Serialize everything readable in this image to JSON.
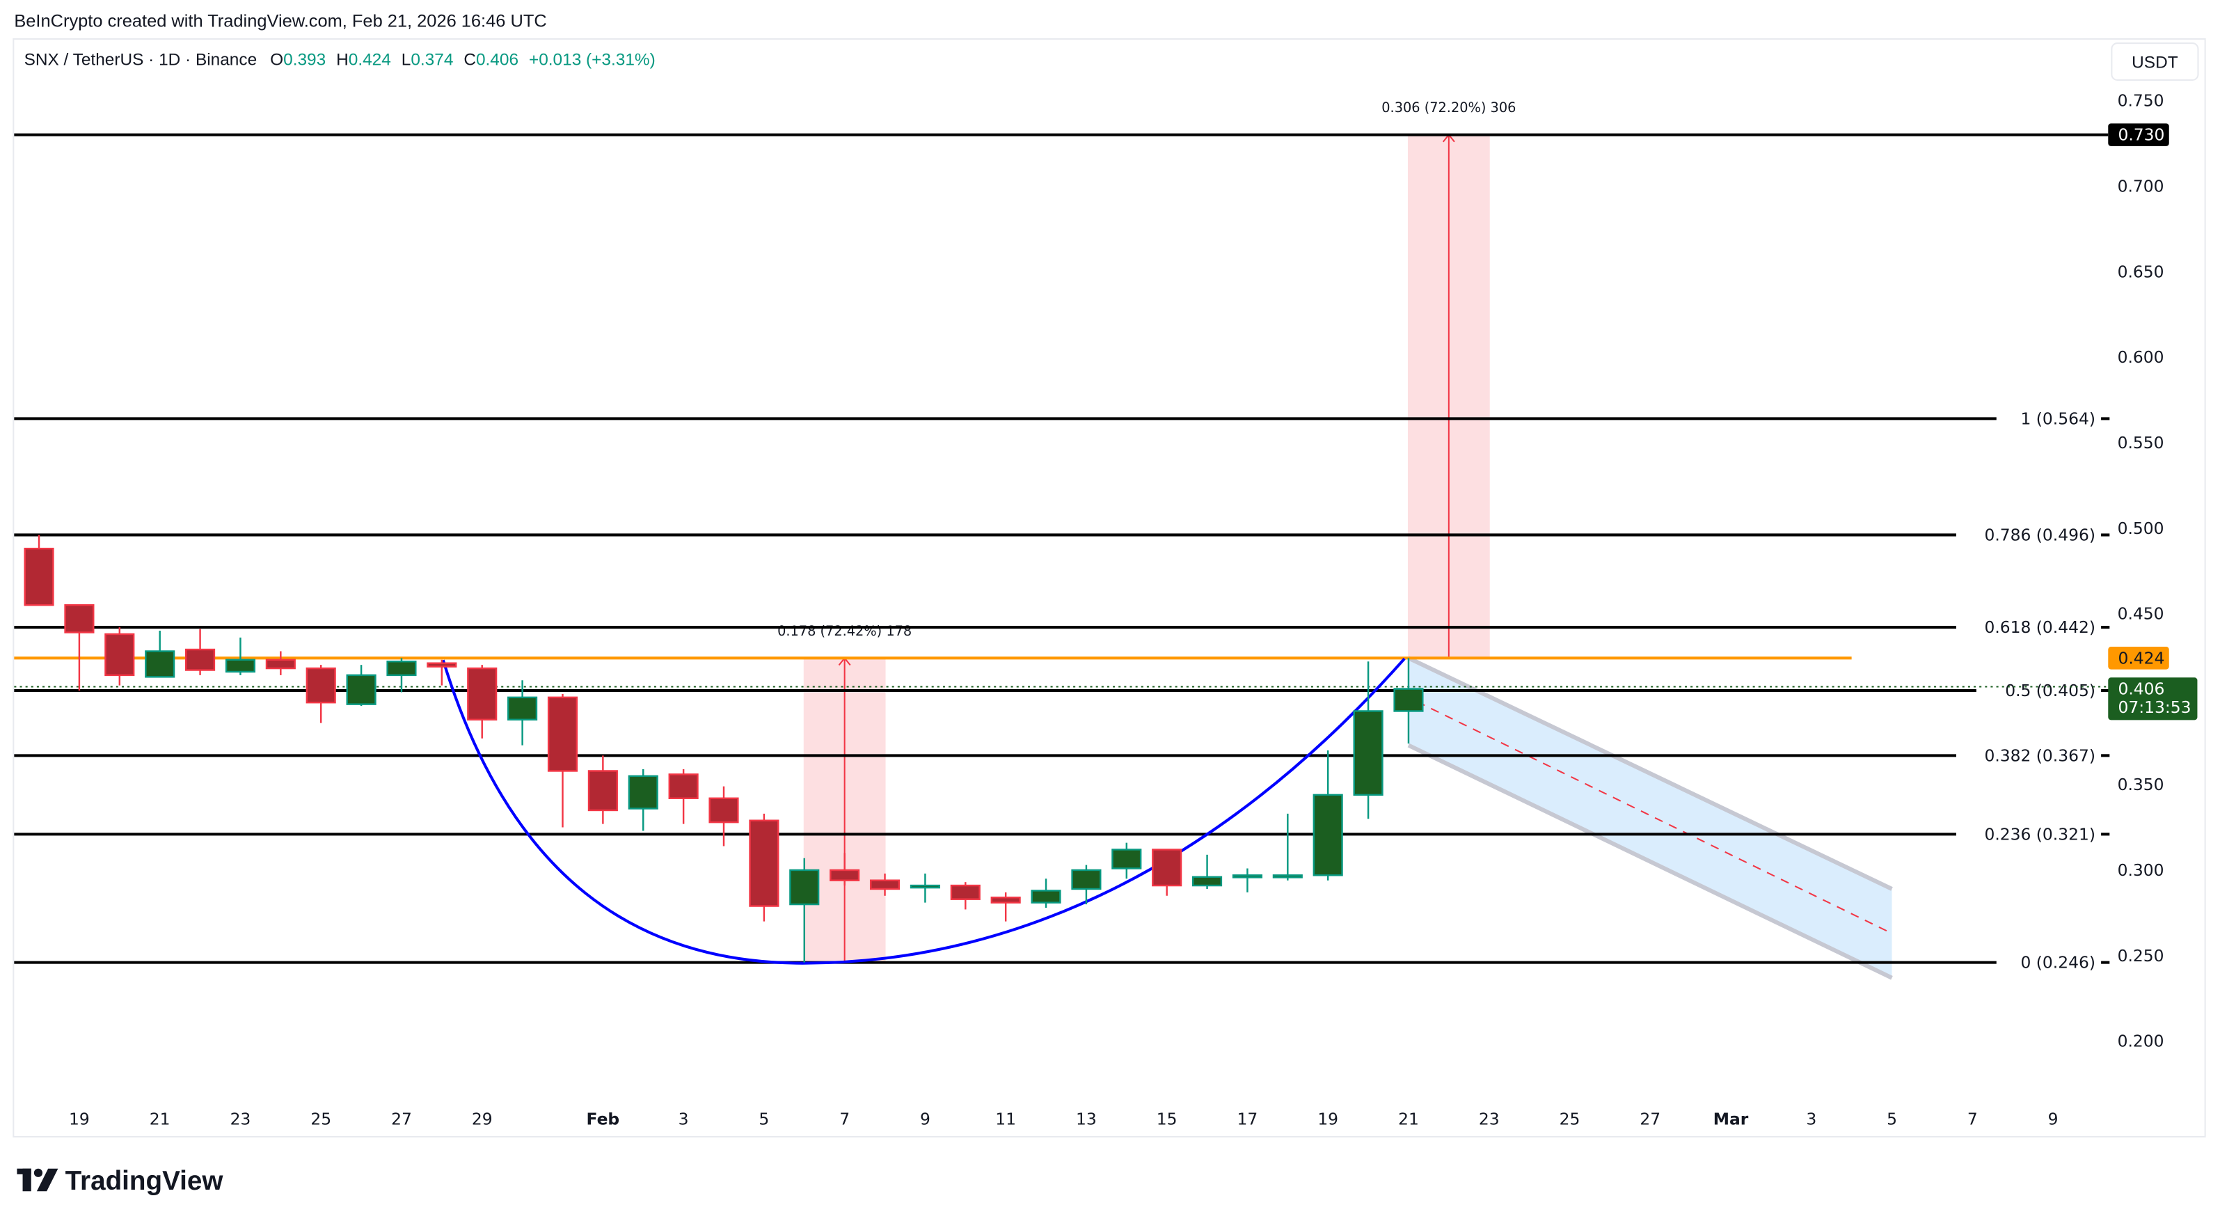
{
  "header": {
    "attribution": "BeInCrypto created with TradingView.com, Feb 21, 2026 16:46 UTC",
    "symbol": "SNX / TetherUS · 1D · Binance",
    "open_label": "O",
    "open": "0.393",
    "high_label": "H",
    "high": "0.424",
    "low_label": "L",
    "low": "0.374",
    "close_label": "C",
    "close": "0.406",
    "change": "+0.013 (+3.31%)"
  },
  "currency_button": "USDT",
  "logo_text": "TradingView",
  "colors": {
    "up_body": "#1b5e20",
    "up_border": "#089981",
    "down_body": "#b22833",
    "down_border": "#f23645",
    "horizontal_line": "#ff9800",
    "curve": "#0000ff",
    "measure_fill": "#f23645",
    "channel_fill": "#2196f3",
    "text_positive": "#089981"
  },
  "chart_data": {
    "type": "candlestick",
    "title": "SNX / TetherUS · 1D · Binance",
    "ylim": [
      0.17,
      0.78
    ],
    "price_ticks": [
      "0.750",
      "0.700",
      "0.650",
      "0.600",
      "0.550",
      "0.500",
      "0.450",
      "0.350",
      "0.300",
      "0.250",
      "0.200"
    ],
    "date_ticks": [
      {
        "label": "19",
        "date": "2026-01-19"
      },
      {
        "label": "21",
        "date": "2026-01-21"
      },
      {
        "label": "23",
        "date": "2026-01-23"
      },
      {
        "label": "25",
        "date": "2026-01-25"
      },
      {
        "label": "27",
        "date": "2026-01-27"
      },
      {
        "label": "29",
        "date": "2026-01-29"
      },
      {
        "label": "Feb",
        "date": "2026-02-01",
        "bold": true
      },
      {
        "label": "3",
        "date": "2026-02-03"
      },
      {
        "label": "5",
        "date": "2026-02-05"
      },
      {
        "label": "7",
        "date": "2026-02-07"
      },
      {
        "label": "9",
        "date": "2026-02-09"
      },
      {
        "label": "11",
        "date": "2026-02-11"
      },
      {
        "label": "13",
        "date": "2026-02-13"
      },
      {
        "label": "15",
        "date": "2026-02-15"
      },
      {
        "label": "17",
        "date": "2026-02-17"
      },
      {
        "label": "19",
        "date": "2026-02-19"
      },
      {
        "label": "21",
        "date": "2026-02-21"
      },
      {
        "label": "23",
        "date": "2026-02-23"
      },
      {
        "label": "25",
        "date": "2026-02-25"
      },
      {
        "label": "27",
        "date": "2026-02-27"
      },
      {
        "label": "Mar",
        "date": "2026-03-01",
        "bold": true
      },
      {
        "label": "3",
        "date": "2026-03-03"
      },
      {
        "label": "5",
        "date": "2026-03-05"
      },
      {
        "label": "7",
        "date": "2026-03-07"
      },
      {
        "label": "9",
        "date": "2026-03-09"
      }
    ],
    "candles": [
      {
        "date": "2026-01-18",
        "o": 0.488,
        "h": 0.496,
        "l": 0.455,
        "c": 0.455
      },
      {
        "date": "2026-01-19",
        "o": 0.455,
        "h": 0.455,
        "l": 0.405,
        "c": 0.439
      },
      {
        "date": "2026-01-20",
        "o": 0.438,
        "h": 0.442,
        "l": 0.408,
        "c": 0.414
      },
      {
        "date": "2026-01-21",
        "o": 0.413,
        "h": 0.44,
        "l": 0.413,
        "c": 0.428
      },
      {
        "date": "2026-01-22",
        "o": 0.429,
        "h": 0.441,
        "l": 0.414,
        "c": 0.417
      },
      {
        "date": "2026-01-23",
        "o": 0.416,
        "h": 0.436,
        "l": 0.414,
        "c": 0.423
      },
      {
        "date": "2026-01-24",
        "o": 0.423,
        "h": 0.428,
        "l": 0.414,
        "c": 0.418
      },
      {
        "date": "2026-01-25",
        "o": 0.418,
        "h": 0.42,
        "l": 0.386,
        "c": 0.398
      },
      {
        "date": "2026-01-26",
        "o": 0.397,
        "h": 0.42,
        "l": 0.396,
        "c": 0.414
      },
      {
        "date": "2026-01-27",
        "o": 0.414,
        "h": 0.424,
        "l": 0.404,
        "c": 0.422
      },
      {
        "date": "2026-01-28",
        "o": 0.421,
        "h": 0.423,
        "l": 0.408,
        "c": 0.419
      },
      {
        "date": "2026-01-29",
        "o": 0.418,
        "h": 0.42,
        "l": 0.377,
        "c": 0.388
      },
      {
        "date": "2026-01-30",
        "o": 0.388,
        "h": 0.411,
        "l": 0.373,
        "c": 0.401
      },
      {
        "date": "2026-01-31",
        "o": 0.401,
        "h": 0.403,
        "l": 0.325,
        "c": 0.358
      },
      {
        "date": "2026-02-01",
        "o": 0.358,
        "h": 0.367,
        "l": 0.327,
        "c": 0.335
      },
      {
        "date": "2026-02-02",
        "o": 0.336,
        "h": 0.359,
        "l": 0.323,
        "c": 0.355
      },
      {
        "date": "2026-02-03",
        "o": 0.356,
        "h": 0.359,
        "l": 0.327,
        "c": 0.342
      },
      {
        "date": "2026-02-04",
        "o": 0.342,
        "h": 0.349,
        "l": 0.314,
        "c": 0.328
      },
      {
        "date": "2026-02-05",
        "o": 0.329,
        "h": 0.333,
        "l": 0.27,
        "c": 0.279
      },
      {
        "date": "2026-02-06",
        "o": 0.28,
        "h": 0.307,
        "l": 0.246,
        "c": 0.3
      },
      {
        "date": "2026-02-07",
        "o": 0.3,
        "h": 0.31,
        "l": 0.291,
        "c": 0.294
      },
      {
        "date": "2026-02-08",
        "o": 0.294,
        "h": 0.298,
        "l": 0.285,
        "c": 0.289
      },
      {
        "date": "2026-02-09",
        "o": 0.29,
        "h": 0.298,
        "l": 0.281,
        "c": 0.291
      },
      {
        "date": "2026-02-10",
        "o": 0.291,
        "h": 0.293,
        "l": 0.277,
        "c": 0.283
      },
      {
        "date": "2026-02-11",
        "o": 0.284,
        "h": 0.287,
        "l": 0.27,
        "c": 0.281
      },
      {
        "date": "2026-02-12",
        "o": 0.281,
        "h": 0.295,
        "l": 0.278,
        "c": 0.288
      },
      {
        "date": "2026-02-13",
        "o": 0.289,
        "h": 0.303,
        "l": 0.28,
        "c": 0.3
      },
      {
        "date": "2026-02-14",
        "o": 0.301,
        "h": 0.316,
        "l": 0.295,
        "c": 0.312
      },
      {
        "date": "2026-02-15",
        "o": 0.312,
        "h": 0.312,
        "l": 0.285,
        "c": 0.291
      },
      {
        "date": "2026-02-16",
        "o": 0.291,
        "h": 0.309,
        "l": 0.289,
        "c": 0.296
      },
      {
        "date": "2026-02-17",
        "o": 0.296,
        "h": 0.301,
        "l": 0.287,
        "c": 0.297
      },
      {
        "date": "2026-02-18",
        "o": 0.297,
        "h": 0.333,
        "l": 0.294,
        "c": 0.297
      },
      {
        "date": "2026-02-19",
        "o": 0.297,
        "h": 0.37,
        "l": 0.294,
        "c": 0.344
      },
      {
        "date": "2026-02-20",
        "o": 0.344,
        "h": 0.422,
        "l": 0.33,
        "c": 0.393
      },
      {
        "date": "2026-02-21",
        "o": 0.393,
        "h": 0.424,
        "l": 0.374,
        "c": 0.406
      }
    ],
    "fib_levels": [
      {
        "level": "1",
        "price": 0.564,
        "label": "1 (0.564)"
      },
      {
        "level": "0.786",
        "price": 0.496,
        "label": "0.786 (0.496)"
      },
      {
        "level": "0.618",
        "price": 0.442,
        "label": "0.618 (0.442)"
      },
      {
        "level": "0.5",
        "price": 0.405,
        "label": "0.5 (0.405)"
      },
      {
        "level": "0.382",
        "price": 0.367,
        "label": "0.382 (0.367)"
      },
      {
        "level": "0.236",
        "price": 0.321,
        "label": "0.236 (0.321)"
      },
      {
        "level": "0",
        "price": 0.246,
        "label": "0 (0.246)"
      }
    ],
    "target_line": {
      "price": 0.73,
      "label": "0.730"
    },
    "horizontal_line": {
      "price": 0.424,
      "label": "0.424",
      "end_date": "2026-03-04"
    },
    "current_price": {
      "price": 0.406,
      "label": "0.406",
      "countdown": "07:13:53"
    },
    "measurements": [
      {
        "start_date": "2026-02-06",
        "end_date": "2026-02-08",
        "from": 0.246,
        "to": 0.424,
        "label": "0.178 (72.42%) 178"
      },
      {
        "start_date": "2026-02-21",
        "end_date": "2026-02-23",
        "from": 0.424,
        "to": 0.73,
        "label": "0.306 (72.20%) 306"
      }
    ],
    "channel": {
      "start_date": "2026-02-21",
      "end_date": "2026-03-05",
      "top": [
        0.424,
        0.289
      ],
      "bottom": [
        0.373,
        0.237
      ]
    }
  }
}
